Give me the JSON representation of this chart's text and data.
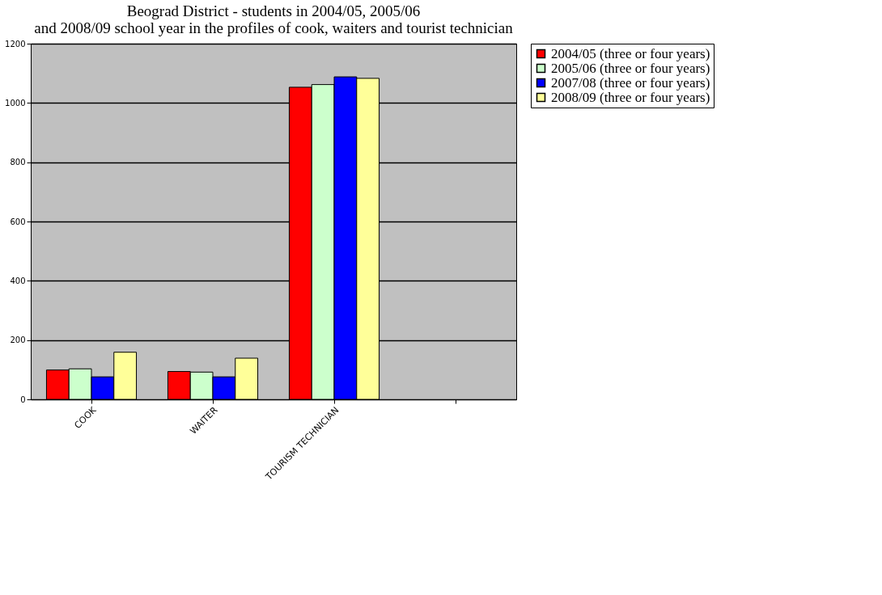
{
  "chart_data": {
    "type": "bar",
    "title": [
      "Beograd  District - students in 2004/05, 2005/06",
      "and 2008/09 school year in the profiles of cook, waiters and tourist technician"
    ],
    "categories": [
      "COOK",
      "WAITER",
      "TOURISM TECHNICIAN",
      null
    ],
    "series": [
      {
        "name": "2004/05 (three or four years)",
        "color": "#ff0000",
        "values": [
          99,
          94,
          1053,
          null
        ]
      },
      {
        "name": "2005/06 (three or four years)",
        "color": "#ccffcc",
        "values": [
          103,
          92,
          1062,
          null
        ]
      },
      {
        "name": "2007/08 (three or four years)",
        "color": "#0000ff",
        "values": [
          76,
          76,
          1088,
          null
        ]
      },
      {
        "name": "2008/09 (three or four years)",
        "color": "#ffff99",
        "values": [
          159,
          139,
          1083,
          null
        ]
      }
    ],
    "ylim": [
      0,
      1200
    ],
    "yticks": [
      0,
      200,
      400,
      600,
      800,
      1000,
      1200
    ],
    "grid": "y",
    "legend": "right"
  }
}
